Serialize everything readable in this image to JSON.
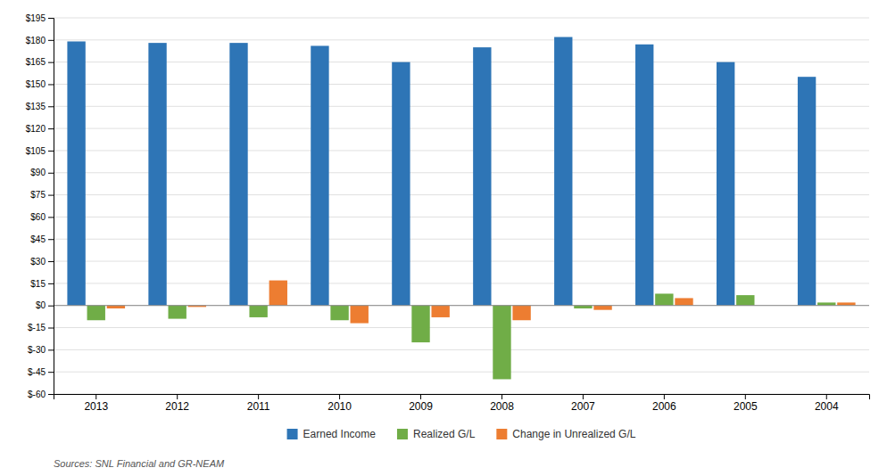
{
  "chart_data": {
    "type": "bar",
    "categories": [
      "2013",
      "2012",
      "2011",
      "2010",
      "2009",
      "2008",
      "2007",
      "2006",
      "2005",
      "2004"
    ],
    "series": [
      {
        "name": "Earned Income",
        "color": "#2E75B6",
        "values": [
          179,
          178,
          178,
          176,
          165,
          175,
          182,
          177,
          165,
          155
        ]
      },
      {
        "name": "Realized G/L",
        "color": "#70AD47",
        "values": [
          -10,
          -9,
          -8,
          -10,
          -25,
          -50,
          -2,
          8,
          7,
          2
        ]
      },
      {
        "name": "Change in Unrealized G/L",
        "color": "#ED7D31",
        "values": [
          -2,
          -1,
          17,
          -12,
          -8,
          -10,
          -3,
          5,
          0,
          2
        ]
      }
    ],
    "ylim": [
      -60,
      195
    ],
    "yticks": [
      {
        "value": -60,
        "label": "$-60"
      },
      {
        "value": -45,
        "label": "$-45"
      },
      {
        "value": -30,
        "label": "$-30"
      },
      {
        "value": -15,
        "label": "$-15"
      },
      {
        "value": 0,
        "label": "$0"
      },
      {
        "value": 15,
        "label": "$15"
      },
      {
        "value": 30,
        "label": "$30"
      },
      {
        "value": 45,
        "label": "$45"
      },
      {
        "value": 60,
        "label": "$60"
      },
      {
        "value": 75,
        "label": "$75"
      },
      {
        "value": 90,
        "label": "$90"
      },
      {
        "value": 105,
        "label": "$105"
      },
      {
        "value": 120,
        "label": "$120"
      },
      {
        "value": 135,
        "label": "$135"
      },
      {
        "value": 150,
        "label": "$150"
      },
      {
        "value": 165,
        "label": "$165"
      },
      {
        "value": 180,
        "label": "$180"
      },
      {
        "value": 195,
        "label": "$195"
      }
    ],
    "grid": true,
    "legend": "bottom",
    "annotation": "Sources: SNL Financial and GR-NEAM"
  }
}
